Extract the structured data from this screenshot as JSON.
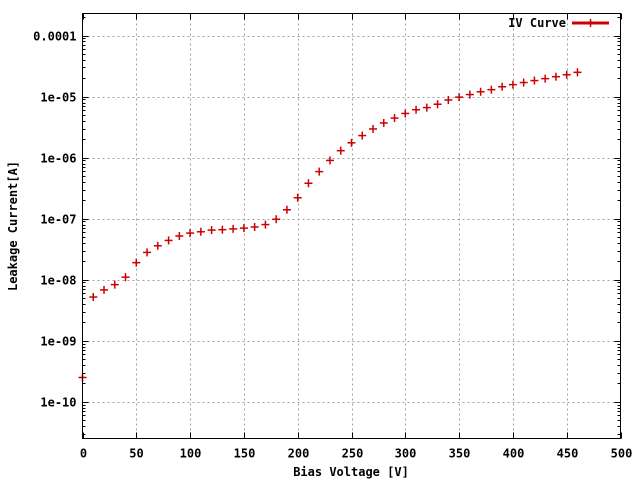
{
  "chart_data": {
    "type": "scatter",
    "xlabel": "Bias Voltage [V]",
    "ylabel": "Leakage Current[A]",
    "xlim": [
      0,
      500
    ],
    "ylim": [
      2.5e-11,
      0.00023
    ],
    "y_scale": "log",
    "grid": true,
    "legend_position": "top-right",
    "x_ticks": [
      0,
      50,
      100,
      150,
      200,
      250,
      300,
      350,
      400,
      450,
      500
    ],
    "x_tick_labels": [
      "0",
      "50",
      "100",
      "150",
      "200",
      "250",
      "300",
      "350",
      "400",
      "450",
      "500"
    ],
    "y_ticks": [
      1e-10,
      1e-09,
      1e-08,
      1e-07,
      1e-06,
      1e-05,
      0.0001
    ],
    "y_tick_labels": [
      "1e-10",
      "1e-09",
      "1e-08",
      "1e-07",
      "1e-06",
      "1e-05",
      "0.0001"
    ],
    "series": [
      {
        "name": "IV Curve",
        "color": "#cc0000",
        "x": [
          0,
          10,
          20,
          30,
          40,
          50,
          60,
          70,
          80,
          90,
          100,
          110,
          120,
          130,
          140,
          150,
          160,
          170,
          180,
          190,
          200,
          210,
          220,
          230,
          240,
          250,
          260,
          270,
          280,
          290,
          300,
          310,
          320,
          330,
          340,
          350,
          360,
          370,
          380,
          390,
          400,
          410,
          420,
          430,
          440,
          450,
          460
        ],
        "y": [
          2.5e-10,
          5.2e-09,
          6.8e-09,
          8.3e-09,
          1.1e-08,
          1.9e-08,
          2.8e-08,
          3.6e-08,
          4.4e-08,
          5.2e-08,
          5.8e-08,
          6.1e-08,
          6.5e-08,
          6.6e-08,
          6.8e-08,
          7e-08,
          7.3e-08,
          8e-08,
          9.8e-08,
          1.4e-07,
          2.2e-07,
          3.8e-07,
          5.9e-07,
          9e-07,
          1.3e-06,
          1.75e-06,
          2.3e-06,
          2.95e-06,
          3.7e-06,
          4.45e-06,
          5.3e-06,
          6.1e-06,
          6.6e-06,
          7.5e-06,
          8.8e-06,
          9.8e-06,
          1.08e-05,
          1.2e-05,
          1.3e-05,
          1.45e-05,
          1.57e-05,
          1.7e-05,
          1.83e-05,
          1.97e-05,
          2.12e-05,
          2.28e-05,
          2.5e-05
        ]
      }
    ]
  }
}
